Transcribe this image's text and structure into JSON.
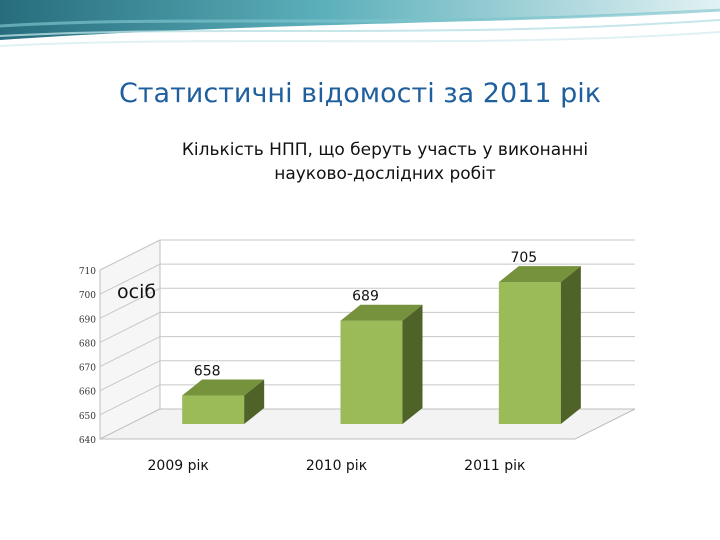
{
  "slide": {
    "title": "Статистичні відомості за 2011 рік"
  },
  "colors": {
    "title": "#1f5f9e",
    "bar_front": "#9bbb59",
    "bar_top": "#76923c",
    "bar_side": "#4f6228"
  },
  "chart_data": {
    "type": "bar",
    "title": "Кількість НПП, що беруть участь у виконанні науково-дослідних робіт",
    "title_lines": [
      "Кількість НПП, що беруть участь у виконанні",
      "науково-дослідних робіт"
    ],
    "unit_label": "осіб",
    "categories": [
      "2009 рік",
      "2010 рік",
      "2011 рік"
    ],
    "values": [
      658,
      689,
      705
    ],
    "ylim": [
      640,
      710
    ],
    "yticks": [
      640,
      650,
      660,
      670,
      680,
      690,
      700,
      710
    ],
    "grid": true,
    "style": "3d-column",
    "legend": "none"
  }
}
